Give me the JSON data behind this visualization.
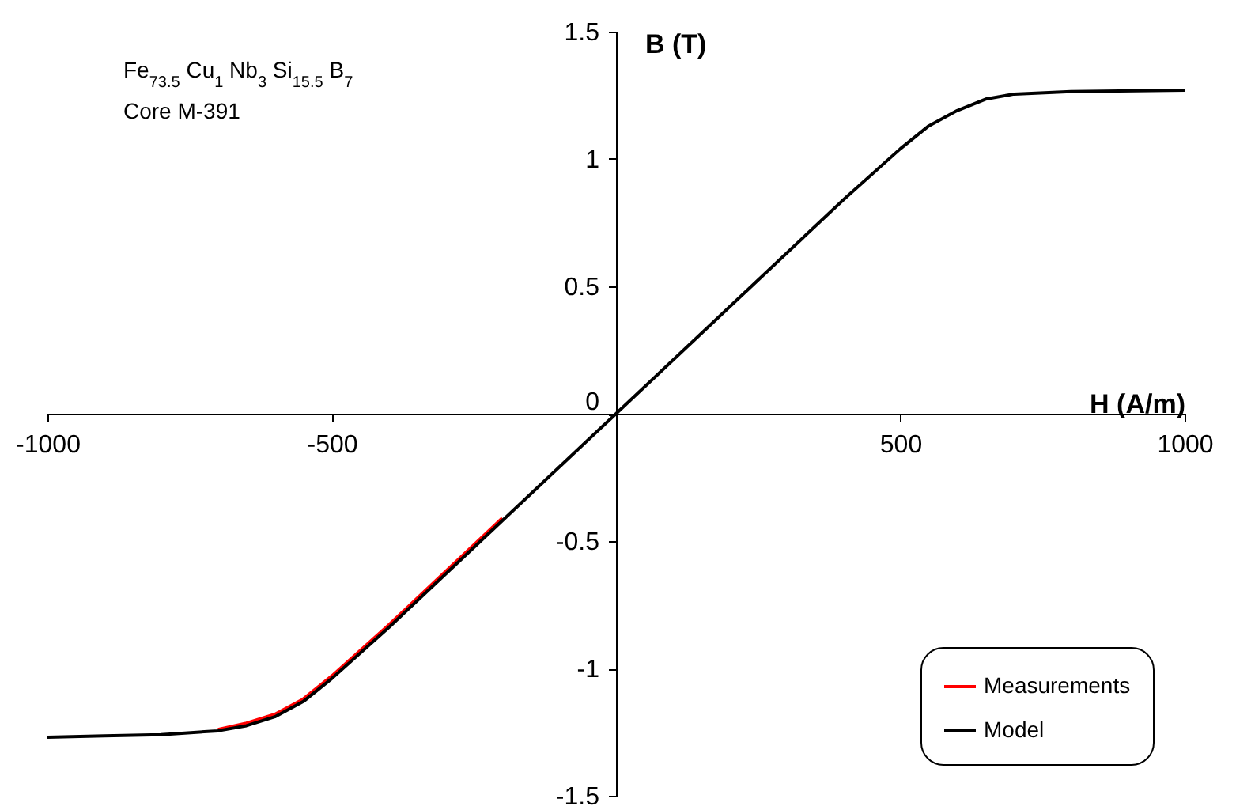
{
  "chart_data": {
    "type": "line",
    "xlabel": "H (A/m)",
    "ylabel": "B (T)",
    "annotations": [
      "Fe$_{73.5}$ Cu$_{1}$ Nb$_{3}$ Si$_{15.5}$ B$_{7}$",
      "Core M-391"
    ],
    "x": [
      -1000,
      -900,
      -800,
      -700,
      -650,
      -600,
      -550,
      -500,
      -400,
      -200,
      0,
      200,
      400,
      500,
      550,
      600,
      650,
      700,
      800,
      1000
    ],
    "series": [
      {
        "name": "Measurements",
        "color": "#ff0000",
        "values": [
          null,
          null,
          null,
          -1.24,
          -1.215,
          -1.18,
          -1.12,
          -1.03,
          -0.83,
          -0.41,
          null,
          null,
          null,
          null,
          null,
          null,
          null,
          null,
          null,
          null
        ]
      },
      {
        "name": "Model",
        "color": "#000000",
        "values": [
          -1.27,
          -1.265,
          -1.26,
          -1.245,
          -1.225,
          -1.19,
          -1.13,
          -1.04,
          -0.84,
          -0.42,
          0,
          0.42,
          0.84,
          1.04,
          1.13,
          1.19,
          1.235,
          1.255,
          1.265,
          1.27
        ]
      }
    ],
    "xlim": [
      -1000,
      1000
    ],
    "xticks": [
      -1000,
      -500,
      500,
      1000
    ],
    "ylim": [
      -1.5,
      1.5
    ],
    "yticks": [
      -1.5,
      -1,
      -0.5,
      0,
      0.5,
      1,
      1.5
    ],
    "legend": "bottom right",
    "grid": false,
    "marker": "none",
    "line_style": "solid"
  }
}
